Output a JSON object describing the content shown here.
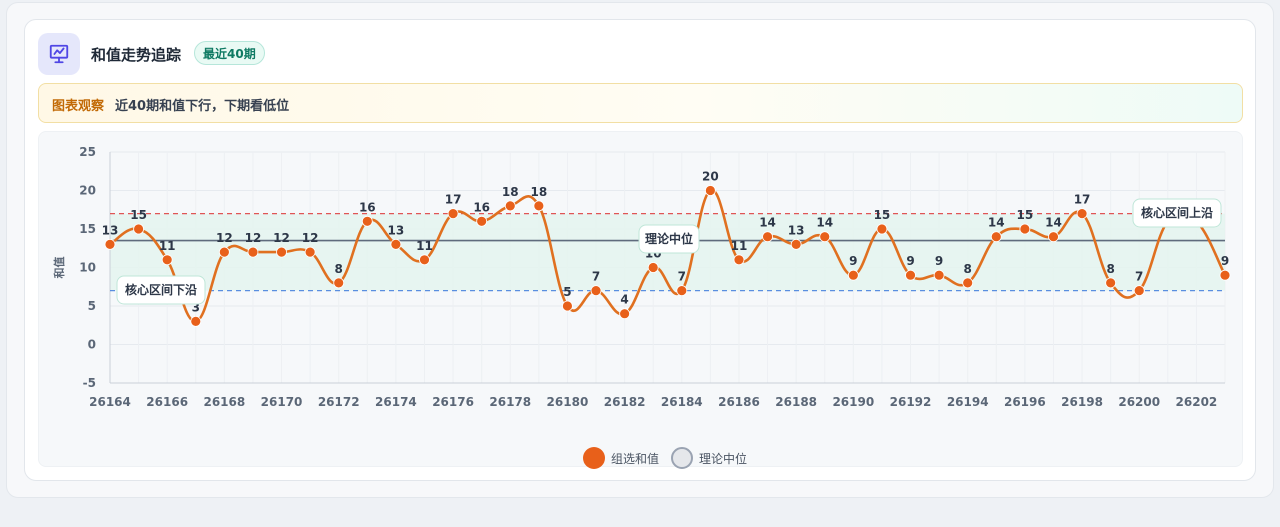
{
  "header": {
    "title": "和值走势追踪",
    "badge": "最近40期",
    "icon": "chart-presentation-icon"
  },
  "observation": {
    "tag": "图表观察",
    "text": "近40期和值下行，下期看低位"
  },
  "legend": {
    "series_label": "组选和值",
    "median_label": "理论中位"
  },
  "annotations": {
    "median": "理论中位",
    "upper": "核心区间上沿",
    "lower": "核心区间下沿"
  },
  "colors": {
    "line": "#e07020",
    "point": "#e8601a",
    "median_line": "#5f6b7d",
    "upper_line": "#e05555",
    "lower_line": "#5a8ee0",
    "band": "#e4f5ee",
    "accent_icon": "#4f46e5"
  },
  "chart_data": {
    "type": "line",
    "x": [
      26164,
      26165,
      26166,
      26167,
      26168,
      26169,
      26170,
      26171,
      26172,
      26173,
      26174,
      26175,
      26176,
      26177,
      26178,
      26179,
      26180,
      26181,
      26182,
      26183,
      26184,
      26185,
      26186,
      26187,
      26188,
      26189,
      26190,
      26191,
      26192,
      26193,
      26194,
      26195,
      26196,
      26197,
      26198,
      26199,
      26200,
      26201,
      26202,
      26203
    ],
    "series": [
      {
        "name": "组选和值",
        "values": [
          13,
          15,
          11,
          3,
          12,
          12,
          12,
          12,
          8,
          16,
          13,
          11,
          17,
          16,
          18,
          18,
          5,
          7,
          4,
          10,
          7,
          20,
          11,
          14,
          13,
          14,
          9,
          15,
          9,
          9,
          8,
          14,
          15,
          14,
          17,
          8,
          7,
          16,
          16,
          9
        ]
      }
    ],
    "xticks": [
      26164,
      26166,
      26168,
      26170,
      26172,
      26174,
      26176,
      26178,
      26180,
      26182,
      26184,
      26186,
      26188,
      26190,
      26192,
      26194,
      26196,
      26198,
      26200,
      26202
    ],
    "yticks": [
      -5,
      0,
      5,
      10,
      15,
      20,
      25
    ],
    "ylim": [
      -5,
      25
    ],
    "xlim": [
      26164,
      26203
    ],
    "ylabel": "和值",
    "xlabel": "",
    "median": 13.5,
    "upper_band": 17,
    "lower_band": 7,
    "grid": true,
    "legend_position": "bottom-center"
  }
}
